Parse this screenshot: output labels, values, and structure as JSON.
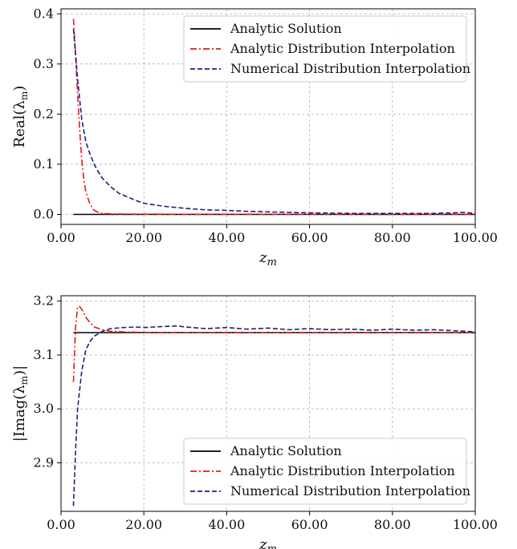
{
  "chart_data": [
    {
      "type": "line",
      "title": "",
      "xlabel": "z_m",
      "ylabel": "Real(λ_m)",
      "xlim": [
        0,
        100
      ],
      "ylim": [
        -0.02,
        0.41
      ],
      "xticks": [
        0,
        20,
        40,
        60,
        80,
        100
      ],
      "xtick_labels": [
        "0.00",
        "20.00",
        "40.00",
        "60.00",
        "80.00",
        "100.00"
      ],
      "yticks": [
        0.0,
        0.1,
        0.2,
        0.3,
        0.4
      ],
      "ytick_labels": [
        "0.0",
        "0.1",
        "0.2",
        "0.3",
        "0.4"
      ],
      "grid": true,
      "legend_position": "top-right",
      "series": [
        {
          "name": "Analytic Solution",
          "color": "#000000",
          "style": "solid",
          "x": [
            3,
            100
          ],
          "y": [
            0.0,
            0.0
          ]
        },
        {
          "name": "Analytic Distribution Interpolation",
          "color": "#e41a1c",
          "style": "dashdot",
          "x": [
            3,
            3.5,
            4,
            4.5,
            5,
            5.5,
            6,
            7,
            8,
            9,
            10,
            12,
            15,
            20,
            30,
            50,
            100
          ],
          "y": [
            0.39,
            0.32,
            0.24,
            0.17,
            0.11,
            0.07,
            0.045,
            0.02,
            0.008,
            0.004,
            0.002,
            0.001,
            0.0008,
            0.0005,
            0.0003,
            0.0002,
            0.0001
          ]
        },
        {
          "name": "Numerical Distribution Interpolation",
          "color": "#1f1f7a",
          "style": "dashed",
          "x": [
            3,
            4,
            5,
            6,
            7,
            8,
            9,
            10,
            12,
            14,
            16,
            18,
            20,
            25,
            30,
            35,
            40,
            45,
            50,
            55,
            60,
            70,
            80,
            90,
            95,
            97,
            100
          ],
          "y": [
            0.37,
            0.27,
            0.19,
            0.145,
            0.12,
            0.1,
            0.085,
            0.072,
            0.055,
            0.042,
            0.035,
            0.028,
            0.022,
            0.016,
            0.012,
            0.009,
            0.008,
            0.006,
            0.005,
            0.004,
            0.003,
            0.002,
            0.002,
            0.002,
            0.003,
            0.004,
            0.002
          ]
        }
      ]
    },
    {
      "type": "line",
      "title": "",
      "xlabel": "z_m",
      "ylabel": "|Imag(λ_m)|",
      "xlim": [
        0,
        100
      ],
      "ylim": [
        2.81,
        3.21
      ],
      "xticks": [
        0,
        20,
        40,
        60,
        80,
        100
      ],
      "xtick_labels": [
        "0.00",
        "20.00",
        "40.00",
        "60.00",
        "80.00",
        "100.00"
      ],
      "yticks": [
        2.9,
        3.0,
        3.1,
        3.2
      ],
      "ytick_labels": [
        "2.9",
        "3.0",
        "3.1",
        "3.2"
      ],
      "grid": true,
      "legend_position": "bottom-right",
      "series": [
        {
          "name": "Analytic Solution",
          "color": "#000000",
          "style": "solid",
          "x": [
            3,
            100
          ],
          "y": [
            3.1416,
            3.1416
          ]
        },
        {
          "name": "Analytic Distribution Interpolation",
          "color": "#e41a1c",
          "style": "dashdot",
          "x": [
            3,
            3.5,
            4,
            4.5,
            5,
            6,
            7,
            8,
            10,
            12,
            15,
            20,
            30,
            50,
            100
          ],
          "y": [
            3.05,
            3.15,
            3.19,
            3.19,
            3.185,
            3.17,
            3.16,
            3.152,
            3.147,
            3.144,
            3.143,
            3.142,
            3.1418,
            3.1417,
            3.1416
          ]
        },
        {
          "name": "Numerical Distribution Interpolation",
          "color": "#1f1f7a",
          "style": "dashed",
          "x": [
            3,
            3.5,
            4,
            5,
            6,
            7,
            8,
            10,
            12,
            15,
            18,
            20,
            25,
            28,
            30,
            35,
            40,
            45,
            50,
            55,
            60,
            65,
            70,
            75,
            80,
            85,
            90,
            95,
            100
          ],
          "y": [
            2.82,
            2.92,
            3.0,
            3.07,
            3.11,
            3.125,
            3.135,
            3.144,
            3.149,
            3.151,
            3.152,
            3.151,
            3.153,
            3.154,
            3.152,
            3.149,
            3.151,
            3.148,
            3.15,
            3.147,
            3.149,
            3.147,
            3.148,
            3.146,
            3.148,
            3.146,
            3.147,
            3.145,
            3.143
          ]
        }
      ]
    }
  ]
}
